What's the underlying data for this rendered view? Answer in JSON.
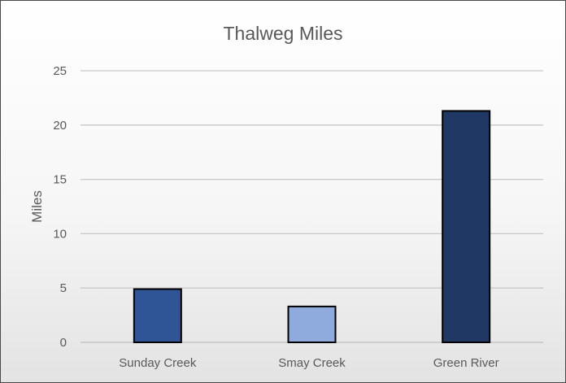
{
  "chart_data": {
    "type": "bar",
    "title": "Thalweg Miles",
    "xlabel": "",
    "ylabel": "Miles",
    "categories": [
      "Sunday Creek",
      "Smay Creek",
      "Green River"
    ],
    "values": [
      4.9,
      3.3,
      21.3
    ],
    "colors": [
      "#2f5597",
      "#8faadc",
      "#1f3864"
    ],
    "ylim": [
      0,
      25
    ],
    "yticks": [
      0,
      5,
      10,
      15,
      20,
      25
    ],
    "grid": true,
    "legend": "none"
  }
}
